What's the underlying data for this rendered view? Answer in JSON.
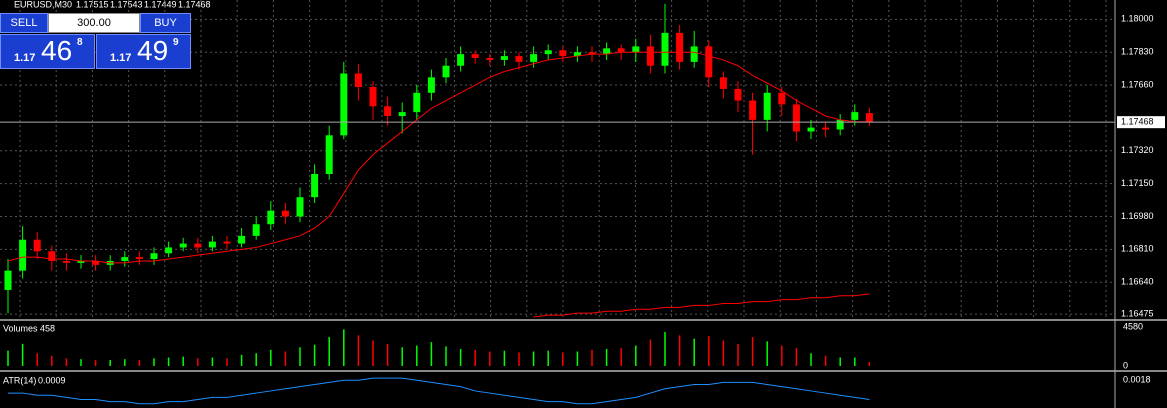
{
  "header": {
    "symbol": "EURUSD,M30"
  },
  "trade_panel": {
    "sell": "SELL",
    "buy": "BUY",
    "lot": "300.00",
    "bid": {
      "prefix": "1.17",
      "big": "46",
      "small": "8"
    },
    "ask": {
      "prefix": "1.17",
      "big": "49",
      "small": "9"
    }
  },
  "chart_data": [
    {
      "type": "candlestick",
      "up_color": "#00ff00",
      "down_color": "#ff0000",
      "open": [
        1.166,
        1.167,
        1.1686,
        1.168,
        1.1675,
        1.1674,
        1.1675,
        1.1673,
        1.1675,
        1.1677,
        1.1676,
        1.1679,
        1.1682,
        1.1684,
        1.1682,
        1.1685,
        1.1684,
        1.1688,
        1.1694,
        1.1701,
        1.1698,
        1.1708,
        1.172,
        1.174,
        1.1772,
        1.1765,
        1.1755,
        1.175,
        1.1752,
        1.1762,
        1.177,
        1.1776,
        1.1782,
        1.178,
        1.1779,
        1.1781,
        1.1778,
        1.1782,
        1.1784,
        1.1781,
        1.1783,
        1.1782,
        1.1785,
        1.1783,
        1.1786,
        1.1776,
        1.1793,
        1.1778,
        1.1786,
        1.177,
        1.1764,
        1.1758,
        1.1748,
        1.1762,
        1.1756,
        1.1742,
        1.1744,
        1.1743,
        1.1748,
        1.17515
      ],
      "high": [
        1.1676,
        1.1693,
        1.169,
        1.1683,
        1.1679,
        1.1678,
        1.1678,
        1.1678,
        1.168,
        1.168,
        1.1682,
        1.1685,
        1.1687,
        1.1687,
        1.1688,
        1.1688,
        1.1692,
        1.1698,
        1.1706,
        1.1705,
        1.1713,
        1.1725,
        1.1745,
        1.1778,
        1.1777,
        1.1768,
        1.176,
        1.1757,
        1.1766,
        1.1774,
        1.178,
        1.1786,
        1.1784,
        1.1782,
        1.1784,
        1.1783,
        1.1786,
        1.1787,
        1.1786,
        1.1786,
        1.1786,
        1.1788,
        1.1787,
        1.179,
        1.1792,
        1.1808,
        1.1797,
        1.1794,
        1.1789,
        1.1773,
        1.1768,
        1.1762,
        1.1766,
        1.1765,
        1.1759,
        1.1748,
        1.1747,
        1.1751,
        1.1756,
        1.17543
      ],
      "low": [
        1.1648,
        1.1666,
        1.1676,
        1.167,
        1.167,
        1.1671,
        1.167,
        1.167,
        1.1672,
        1.1673,
        1.1673,
        1.1677,
        1.168,
        1.1679,
        1.168,
        1.1681,
        1.1682,
        1.1686,
        1.1691,
        1.1694,
        1.1695,
        1.1705,
        1.1717,
        1.1738,
        1.1758,
        1.1748,
        1.1745,
        1.1741,
        1.1748,
        1.1758,
        1.1767,
        1.1773,
        1.1777,
        1.1776,
        1.1776,
        1.1774,
        1.1775,
        1.1779,
        1.1778,
        1.1778,
        1.1778,
        1.1779,
        1.1779,
        1.1778,
        1.1772,
        1.1772,
        1.1774,
        1.1775,
        1.1765,
        1.1759,
        1.1752,
        1.173,
        1.1742,
        1.175,
        1.1737,
        1.1738,
        1.1739,
        1.174,
        1.1745,
        1.17449
      ],
      "close": [
        1.167,
        1.1686,
        1.168,
        1.1675,
        1.1674,
        1.1675,
        1.1673,
        1.1675,
        1.1677,
        1.1676,
        1.1679,
        1.1682,
        1.1684,
        1.1682,
        1.1685,
        1.1684,
        1.1688,
        1.1694,
        1.1701,
        1.1698,
        1.1708,
        1.172,
        1.174,
        1.1772,
        1.1765,
        1.1755,
        1.175,
        1.1752,
        1.1762,
        1.177,
        1.1776,
        1.1782,
        1.178,
        1.1779,
        1.1781,
        1.1778,
        1.1782,
        1.1784,
        1.1781,
        1.1783,
        1.1782,
        1.1785,
        1.1783,
        1.1786,
        1.1776,
        1.1793,
        1.1778,
        1.1786,
        1.177,
        1.1764,
        1.1758,
        1.1748,
        1.1762,
        1.1756,
        1.1742,
        1.1744,
        1.1743,
        1.1748,
        1.1752,
        1.17468
      ],
      "overlays": [
        {
          "color": "#ff0000",
          "values": [
            1.1675,
            1.1677,
            1.1677,
            1.1676,
            1.1676,
            1.1675,
            1.1675,
            1.1674,
            1.1674,
            1.1675,
            1.1675,
            1.1676,
            1.1677,
            1.1678,
            1.1679,
            1.168,
            1.1681,
            1.1682,
            1.1684,
            1.1686,
            1.1688,
            1.1692,
            1.1698,
            1.171,
            1.1722,
            1.173,
            1.1736,
            1.1742,
            1.1748,
            1.1754,
            1.1758,
            1.1762,
            1.1766,
            1.177,
            1.1773,
            1.1775,
            1.1777,
            1.1779,
            1.178,
            1.1781,
            1.1782,
            1.1782,
            1.1783,
            1.1783,
            1.1783,
            1.1783,
            1.1783,
            1.1783,
            1.1781,
            1.1779,
            1.1776,
            1.1771,
            1.1767,
            1.1763,
            1.1758,
            1.1754,
            1.175,
            1.1748,
            1.1747,
            1.1747
          ]
        },
        {
          "color": "#ff0000",
          "values": [
            null,
            null,
            null,
            null,
            null,
            null,
            null,
            null,
            null,
            null,
            null,
            null,
            null,
            null,
            null,
            null,
            null,
            null,
            null,
            null,
            null,
            null,
            null,
            null,
            null,
            null,
            null,
            null,
            null,
            null,
            null,
            null,
            null,
            null,
            null,
            null,
            1.1646,
            1.1647,
            1.1647,
            1.1648,
            1.1648,
            1.1649,
            1.1649,
            1.165,
            1.165,
            1.1651,
            1.1651,
            1.1652,
            1.1652,
            1.1653,
            1.1653,
            1.1654,
            1.1654,
            1.1655,
            1.1655,
            1.1656,
            1.1656,
            1.1657,
            1.1657,
            1.1658
          ]
        }
      ],
      "current_price": 1.17468,
      "ylim": [
        1.16455,
        1.181
      ],
      "yticks": [
        {
          "value": 1.18,
          "label": "1.18000"
        },
        {
          "value": 1.1783,
          "label": "1.17830"
        },
        {
          "value": 1.1766,
          "label": "1.17660"
        },
        {
          "value": 1.1732,
          "label": "1.17320"
        },
        {
          "value": 1.1715,
          "label": "1.17150"
        },
        {
          "value": 1.1698,
          "label": "1.16980"
        },
        {
          "value": 1.1681,
          "label": "1.16810"
        },
        {
          "value": 1.1664,
          "label": "1.16640"
        },
        1.16475
      ],
      "grid": true
    },
    {
      "type": "bar",
      "title": "Volumes",
      "values": [
        1800,
        2600,
        1500,
        1200,
        900,
        800,
        700,
        700,
        800,
        700,
        900,
        1000,
        1100,
        900,
        1000,
        900,
        1300,
        1500,
        1900,
        1700,
        2200,
        2500,
        3400,
        4300,
        3600,
        3000,
        2600,
        2200,
        2400,
        2800,
        2300,
        2000,
        1900,
        1700,
        1800,
        1600,
        1700,
        1800,
        1600,
        1700,
        1900,
        2000,
        2100,
        2400,
        3100,
        4000,
        3600,
        3200,
        3500,
        3000,
        2600,
        3400,
        2900,
        2400,
        2100,
        1500,
        1200,
        1000,
        1000,
        458
      ],
      "ylim": [
        0,
        4580
      ],
      "yticks": [
        4580,
        0
      ]
    },
    {
      "type": "line",
      "title": "ATR(14)",
      "color": "#1e90ff",
      "values": [
        0.0012,
        0.0012,
        0.0011,
        0.0011,
        0.001,
        0.0009,
        0.0009,
        0.0008,
        0.0008,
        0.0007,
        0.0007,
        0.0008,
        0.0008,
        0.0009,
        0.001,
        0.001,
        0.0011,
        0.0012,
        0.0013,
        0.0014,
        0.0015,
        0.0016,
        0.0017,
        0.0018,
        0.0018,
        0.0019,
        0.0019,
        0.0019,
        0.0018,
        0.0017,
        0.0016,
        0.0015,
        0.0013,
        0.0012,
        0.0011,
        0.001,
        0.0009,
        0.0008,
        0.0008,
        0.0007,
        0.0007,
        0.0008,
        0.0009,
        0.001,
        0.0012,
        0.0014,
        0.0015,
        0.0016,
        0.0016,
        0.0017,
        0.0017,
        0.0017,
        0.0016,
        0.0015,
        0.0014,
        0.0013,
        0.0012,
        0.0011,
        0.001,
        0.0009
      ],
      "ylim": [
        0.0005,
        0.002
      ],
      "yticks": [
        0.0018
      ]
    }
  ]
}
